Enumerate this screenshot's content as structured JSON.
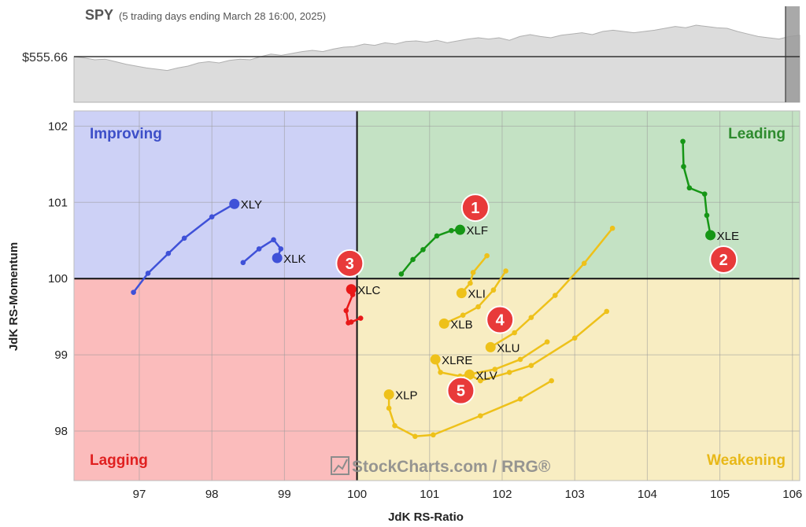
{
  "chart_data": {
    "type": "scatter",
    "header": {
      "symbol": "SPY",
      "subtitle": "(5 trading days ending March 28 16:00, 2025)",
      "price_label": "$555.66"
    },
    "xlabel": "JdK RS-Ratio",
    "ylabel": "JdK RS-Momentum",
    "xlim": [
      96.1,
      106.1
    ],
    "ylim": [
      97.35,
      102.2
    ],
    "x_ticks": [
      "97",
      "98",
      "99",
      "100",
      "101",
      "102",
      "103",
      "104",
      "105",
      "106"
    ],
    "y_ticks": [
      "102",
      "101",
      "100",
      "99",
      "98"
    ],
    "quadrants": {
      "improving": {
        "label": "Improving",
        "color": "#cdd1f6",
        "label_color": "#3d4fc8"
      },
      "leading": {
        "label": "Leading",
        "color": "#c4e2c4",
        "label_color": "#2e8b2e"
      },
      "lagging": {
        "label": "Lagging",
        "color": "#fbbcbc",
        "label_color": "#e02020"
      },
      "weakening": {
        "label": "Weakening",
        "color": "#f8edc2",
        "label_color": "#e8b818"
      }
    },
    "watermark": "StockCharts.com / RRG®",
    "series": [
      {
        "name": "XLY",
        "color": "#3f51d8",
        "points": [
          [
            96.92,
            99.82
          ],
          [
            97.12,
            100.07
          ],
          [
            97.4,
            100.33
          ],
          [
            97.62,
            100.53
          ],
          [
            98.0,
            100.81
          ],
          [
            98.31,
            100.98
          ]
        ]
      },
      {
        "name": "XLK",
        "color": "#3f51d8",
        "points": [
          [
            98.43,
            100.21
          ],
          [
            98.65,
            100.39
          ],
          [
            98.85,
            100.51
          ],
          [
            98.95,
            100.39
          ],
          [
            98.9,
            100.27
          ]
        ]
      },
      {
        "name": "XLF",
        "color": "#169616",
        "points": [
          [
            100.61,
            100.06
          ],
          [
            100.77,
            100.25
          ],
          [
            100.91,
            100.38
          ],
          [
            101.1,
            100.56
          ],
          [
            101.3,
            100.63
          ],
          [
            101.42,
            100.64
          ]
        ]
      },
      {
        "name": "XLE",
        "color": "#169616",
        "points": [
          [
            104.49,
            101.8
          ],
          [
            104.5,
            101.47
          ],
          [
            104.58,
            101.19
          ],
          [
            104.79,
            101.11
          ],
          [
            104.82,
            100.83
          ],
          [
            104.87,
            100.57
          ]
        ]
      },
      {
        "name": "XLC",
        "color": "#e81818",
        "points": [
          [
            100.05,
            99.48
          ],
          [
            99.92,
            99.43
          ],
          [
            99.88,
            99.42
          ],
          [
            99.85,
            99.58
          ],
          [
            99.94,
            99.79
          ],
          [
            99.92,
            99.86
          ]
        ]
      },
      {
        "name": "XLI",
        "color": "#eec11a",
        "points": [
          [
            101.79,
            100.3
          ],
          [
            101.6,
            100.08
          ],
          [
            101.56,
            99.94
          ],
          [
            101.44,
            99.81
          ]
        ]
      },
      {
        "name": "XLB",
        "color": "#eec11a",
        "points": [
          [
            102.05,
            100.1
          ],
          [
            101.88,
            99.85
          ],
          [
            101.67,
            99.63
          ],
          [
            101.46,
            99.52
          ],
          [
            101.2,
            99.41
          ]
        ]
      },
      {
        "name": "XLU",
        "color": "#eec11a",
        "points": [
          [
            103.52,
            100.66
          ],
          [
            103.13,
            100.2
          ],
          [
            102.73,
            99.78
          ],
          [
            102.4,
            99.49
          ],
          [
            102.17,
            99.29
          ],
          [
            101.84,
            99.1
          ]
        ]
      },
      {
        "name": "XLRE",
        "color": "#eec11a",
        "points": [
          [
            102.62,
            99.17
          ],
          [
            102.25,
            98.94
          ],
          [
            101.9,
            98.81
          ],
          [
            101.42,
            98.72
          ],
          [
            101.15,
            98.77
          ],
          [
            101.08,
            98.94
          ]
        ]
      },
      {
        "name": "XLV",
        "color": "#eec11a",
        "points": [
          [
            103.44,
            99.57
          ],
          [
            103.0,
            99.22
          ],
          [
            102.4,
            98.86
          ],
          [
            102.1,
            98.77
          ],
          [
            101.7,
            98.66
          ],
          [
            101.55,
            98.74
          ]
        ]
      },
      {
        "name": "XLP",
        "color": "#eec11a",
        "points": [
          [
            102.68,
            98.66
          ],
          [
            102.25,
            98.42
          ],
          [
            101.7,
            98.2
          ],
          [
            101.05,
            97.95
          ],
          [
            100.8,
            97.93
          ],
          [
            100.52,
            98.07
          ],
          [
            100.44,
            98.3
          ],
          [
            100.44,
            98.48
          ]
        ]
      }
    ],
    "annotations": [
      {
        "text": "1",
        "x": 101.63,
        "y": 100.93
      },
      {
        "text": "2",
        "x": 105.05,
        "y": 100.25
      },
      {
        "text": "3",
        "x": 99.9,
        "y": 100.2
      },
      {
        "text": "4",
        "x": 101.97,
        "y": 99.46
      },
      {
        "text": "5",
        "x": 101.43,
        "y": 98.53
      }
    ],
    "benchmark_line": {
      "values": [
        0.5,
        0.48,
        0.45,
        0.46,
        0.42,
        0.38,
        0.35,
        0.32,
        0.3,
        0.28,
        0.32,
        0.35,
        0.4,
        0.42,
        0.4,
        0.44,
        0.46,
        0.45,
        0.5,
        0.54,
        0.52,
        0.55,
        0.58,
        0.6,
        0.58,
        0.62,
        0.65,
        0.66,
        0.7,
        0.68,
        0.72,
        0.7,
        0.74,
        0.75,
        0.73,
        0.76,
        0.72,
        0.75,
        0.78,
        0.8,
        0.78,
        0.8,
        0.76,
        0.82,
        0.85,
        0.82,
        0.8,
        0.84,
        0.86,
        0.88,
        0.85,
        0.9,
        0.92,
        0.9,
        0.88,
        0.9,
        0.92,
        0.95,
        0.98,
        0.96,
        1.0,
        0.98,
        0.96,
        0.95,
        0.9,
        0.86,
        0.82,
        0.8,
        0.78,
        0.82,
        0.84
      ]
    }
  }
}
